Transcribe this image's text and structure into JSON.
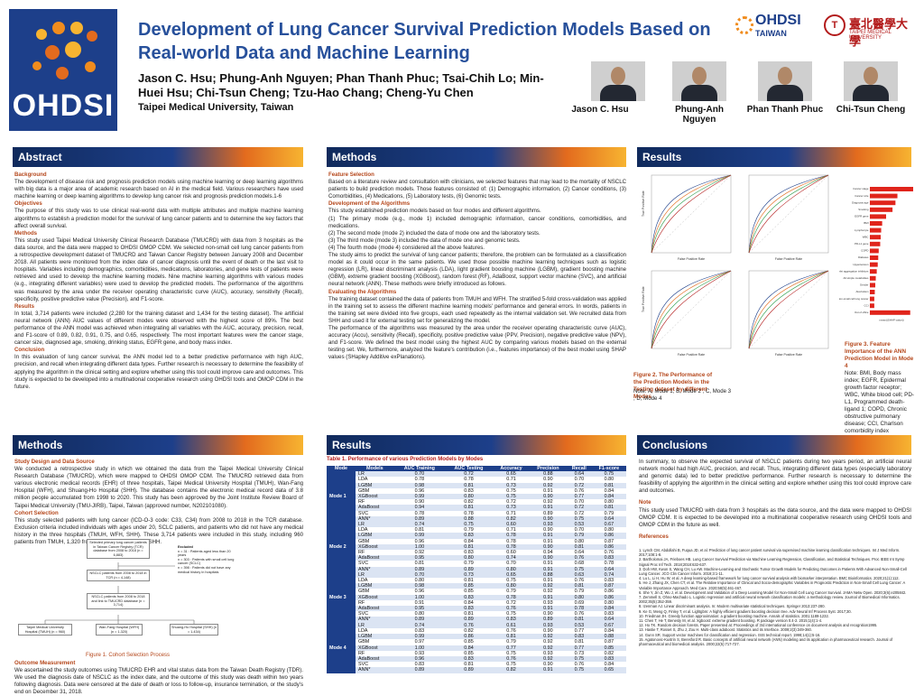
{
  "header": {
    "title": "Development of Lung Cancer Survival Prediction Models Based on Real-world Data and Machine Learning",
    "authors": "Jason C. Hsu; Phung-Anh Nguyen; Phan Thanh Phuc; Tsai-Chih Lo; Min-Huei Hsu; Chi-Tsun Cheng; Tzu-Hao Chang; Cheng-Yu Chen",
    "affiliation": "Taipei Medical University, Taiwan",
    "logo_text": "OHDSI",
    "logo_right_1": "OHDSI",
    "logo_right_2": "TAIWAN",
    "tmu_name": "臺北醫學大學",
    "tmu_sub": "TAIPEI MEDICAL UNIVERSITY",
    "photos": [
      {
        "name": "Jason C. Hsu"
      },
      {
        "name": "Phung-Anh Nguyen"
      },
      {
        "name": "Phan Thanh Phuc"
      },
      {
        "name": "Chi-Tsun Cheng"
      }
    ]
  },
  "sections": {
    "abstract": "Abstract",
    "methods_top": "Methods",
    "results_top": "Results",
    "methods_bottom": "Methods",
    "results_bottom": "Results",
    "conclusions": "Conclusions"
  },
  "abstract": {
    "background_h": "Background",
    "background": "The development of disease risk and prognosis prediction models using machine learning or deep learning algorithms with big data is a major area of academic research based on AI in the medical field. Various researchers have used machine learning or deep learning algorithms to develop lung cancer risk and prognosis prediction models.1-6",
    "objectives_h": "Objectives",
    "objectives": "The purpose of this study was to use clinical real-world data with multiple attributes and multiple machine learning algorithms to establish a prediction model for the survival of lung cancer patients and to determine the key factors that affect overall survival.",
    "methods_h": "Methods",
    "methods": "This study used Taipei Medical University Clinical Research Database (TMUCRD) with data from 3 hospitals as the data source, and the data were mapped to OHDSI OMOP CDM. We selected non-small cell lung cancer patients from a retrospective development dataset of TMUCRD and Taiwan Cancer Registry between January 2008 and December 2018. All patients were monitored from the index date of cancer diagnosis until the event of death or the last visit to hospitals. Variables including demographics, comorbidities, medications, laboratories, and gene tests of patients were retrieved and used to develop the machine learning models. Nine machine learning algorithms with various modes (e.g., integrating different variables) were used to develop the predicted models. The performance of the algorithms was measured by the area under the receiver operating characteristic curve (AUC), accuracy, sensitivity (Recall), specificity, positive predictive value (Precision), and F1-score.",
    "results_h": "Results",
    "results": "In total, 3,714 patients were included (2,280 for the training dataset and 1,434 for the testing dataset). The artificial neural network (ANN) AUC values of different modes were observed with the highest score of 89%. The best performance of the ANN model was achieved when integrating all variables with the AUC, accuracy, precision, recall, and F1-score of 0.89, 0.82, 0.91, 0.75, and 0.65, respectively. The most important features were the cancer stage, cancer size, diagnosed age, smoking, drinking status, EGFR gene, and body mass index.",
    "conclusion_h": "Conclusion",
    "conclusion": "In this evaluation of lung cancer survival, the ANN model led to a better predictive performance with high AUC, precision, and recall when integrating different data types. Further research is necessary to determine the feasibility of applying the algorithm in the clinical setting and explore whether using this tool could improve care and outcomes. This study is expected to be developed into a multinational cooperative research using OHDSI tools and OMOP CDM in the future."
  },
  "methods_top": {
    "feature_h": "Feature Selection",
    "feature": "Based on a literature review and consultation with clinicians, we selected features that may lead to the mortality of NSCLC patients to build prediction models. Those features consisted of: (1) Demographic information, (2) Cancer conditions, (3) Comorbidities, (4) Medications, (5) Laboratory tests, (6) Genomic tests.",
    "dev_h": "Development of the Algorithms",
    "dev1": "This study established prediction models based on four modes and different algorithms.",
    "dev2": "(1) The primary mode (e.g., mode 1) included demographic information, cancer conditions, comorbidities, and medications.",
    "dev3": "(2) The second mode (mode 2) included the data of mode one and the laboratory tests.",
    "dev4": "(3) The third mode (mode 3) included the data of mode one and genomic tests.",
    "dev5": "(4) The fourth mode (mode 4) considered all the above features.",
    "dev6": "The study aims to predict the survival of lung cancer patients; therefore, the problem can be formulated as a classification model as it could occur in the same patients. We used those possible machine learning techniques such as logistic regression (LR), linear discriminant analysis (LDA), light gradient boosting machine (LGBM), gradient boosting machine (GBM), extreme gradient boosting (XGBoost), random forest (RF), AdaBoost, support vector machine (SVC), and artificial neural network (ANN). These methods were briefly introduced as follows.",
    "eval_h": "Evaluating the Algorithms",
    "eval1": "The training dataset contained the data of patients from TMUH and WFH. The stratified 5-fold cross-validation was applied in the training set to assess the different machine learning models' performance and general errors. In words, patients in the training set were divided into five groups, each used repeatedly as the internal validation set. We recruited data from SHH and used it for external testing set for generalizing the model.",
    "eval2": "The performance of the algorithms was measured by the area under the receiver operating characteristic curve (AUC), accuracy (Accu), sensitivity (Recall), specificity, positive predictive value (PPV, Precision), negative predictive value (NPV), and F1-score. We defined the best model using the highest AUC by comparing various models based on the external testing set. We, furthermore, analyzed the feature's contribution (i.e., features importance) of the best model using SHAP values (SHapley Additive exPlanations)."
  },
  "results_top": {
    "fig2_caption": "Figure 2. The Performance of the Prediction Models in the Testing dataset by different Modes",
    "fig2_note": "Note: A, Mode 1; B, Mode 2 ; C, Mode 3 ; D, Mode 4",
    "fig3_caption": "Figure 3. Feature Importance of the ANN Prediction Model in Mode 4",
    "fig3_note": "Note: BMI, Body mass index; EGFR, Epidermal growth factor receptor; WBC, White blood cell; PD-L1, Programmed death-ligand 1; COPD, Chronic obstructive pulmonary disease; CCI, Charlson comorbidity index",
    "roc_xlabel": "False Positive Rate",
    "roc_ylabel": "True Positive Rate",
    "bar_xlabel": "mean(|SHAP value|)",
    "features": [
      "Cancer stage",
      "Cancer size",
      "Diagnosis age",
      "Smoking",
      "EGFR gene",
      "BMI",
      "Lymphocyte",
      "WBC",
      "PD-L1 gene",
      "COPD",
      "Diabetes",
      "Hypertension",
      "Platelet aggregation inhibitors",
      "All simple metabolites",
      "Gender",
      "Alcoholism",
      "Non-small cell lung cancer",
      "CCI",
      "Out of office"
    ],
    "shap_values": [
      0.088,
      0.056,
      0.052,
      0.046,
      0.033,
      0.025,
      0.023,
      0.022,
      0.021,
      0.018,
      0.017,
      0.016,
      0.014,
      0.012,
      0.011,
      0.01,
      0.009,
      0.009,
      0.082
    ]
  },
  "methods_bottom": {
    "design_h": "Study Design and Data Source",
    "design": "We conducted a retrospective study in which we obtained the data from the Taipei Medical University Clinical Research Database (TMUCRD), which were mapped to OHDSI OMOP CDM. The TMUCRD retrieved data from various electronic medical records (EHR) of three hospitals, Taipei Medical University Hospital (TMUH), Wan-Fang Hospital (WFH), and Shuang-Ho Hospital (SHH). The database contains the electronic medical record data of 3.8 million people accumulated from 1998 to 2020. This study has been approved by the Joint Institute Review Board of Taipei Medical University (TMU-JIRB), Taipei, Taiwan (approved number, N202101080).",
    "cohort_h": "Cohort Selection",
    "cohort": "This study selected patients with lung cancer (ICD-O-3 code: C33, C34) from 2008 to 2018 in the TCR database. Exclusion criteria included individuals with ages under 20, SCLC patients, and patients who did not have any medical history in the three hospitals (TMUH, WFH, SHH). These 3,714 patients were included in this study, including 960 patients from TMUH, 1,320 from WFH, and 1,434 from SHH.",
    "fig1_caption": "Figure 1. Cohort Selection Process",
    "outcome_h": "Outcome Measurement",
    "outcome": "We ascertained the study outcomes using TMUCRD EHR and vital status data from the Taiwan Death Registry (TDR). We used the diagnosis date of NSCLC as the index date, and the outcome of this study was death within two years following diagnosis. Data were censored at the date of death or loss to follow-up, insurance termination, or the study's end on December 31, 2018.",
    "boxes": {
      "b1": "Selected primary lung cancer patients in Taiwan Cancer Registry (TCR) database from 2008 to 2018 (n = 6,883)",
      "b2": "NSCLC patients from 2008 to 2018 in TCR (n = 4,148)",
      "b3": "NSCLC patients from 2008 to 2018 and link to TMUCRD database (n = 3,714)",
      "b4": "Taipei Medical University Hospital (TMUH) (n = 960)",
      "b5": "Wan-Fang Hospital (WFH) (n = 1,320)",
      "b6": "Shuang-Ho Hospital (SHH) (n = 1,434)",
      "ex_title": "Excluded",
      "ex1": "n = 31 : Patients aged less than 20 years",
      "ex2": "n = 303 : Patients with small cell lung cancer (SCLC)",
      "ex3": "n = 398 : Patients did not have any medical history in hospitals"
    }
  },
  "table": {
    "title": "Table 1. Performance of various Prediction Models by Modes",
    "headers": [
      "Mode",
      "Models",
      "AUC Training",
      "AUC Testing",
      "Accuracy",
      "Precision",
      "Recall",
      "F1-score"
    ],
    "modes": [
      {
        "name": "Mode 1",
        "rows": [
          [
            "LR",
            "0.70",
            "0.72",
            "0.65",
            "0.88",
            "0.64",
            "0.75"
          ],
          [
            "LDA",
            "0.78",
            "0.78",
            "0.71",
            "0.90",
            "0.70",
            "0.80"
          ],
          [
            "LGBM",
            "0.98",
            "0.81",
            "0.73",
            "0.92",
            "0.72",
            "0.81"
          ],
          [
            "GBM",
            "0.96",
            "0.83",
            "0.75",
            "0.91",
            "0.76",
            "0.84"
          ],
          [
            "XGBoost",
            "0.99",
            "0.80",
            "0.75",
            "0.90",
            "0.77",
            "0.84"
          ],
          [
            "RF",
            "0.90",
            "0.82",
            "0.72",
            "0.92",
            "0.70",
            "0.80"
          ],
          [
            "AdaBoost",
            "0.94",
            "0.81",
            "0.73",
            "0.91",
            "0.72",
            "0.81"
          ],
          [
            "SVC",
            "0.78",
            "0.78",
            "0.71",
            "0.89",
            "0.72",
            "0.79"
          ],
          [
            "ANN*",
            "0.89",
            "0.88",
            "0.82",
            "0.90",
            "0.75",
            "0.64"
          ]
        ]
      },
      {
        "name": "Mode 2",
        "rows": [
          [
            "LR",
            "0.74",
            "0.75",
            "0.60",
            "0.93",
            "0.53",
            "0.67"
          ],
          [
            "LDA",
            "0.81",
            "0.79",
            "0.71",
            "0.90",
            "0.70",
            "0.80"
          ],
          [
            "LGBM",
            "0.99",
            "0.83",
            "0.78",
            "0.91",
            "0.79",
            "0.86"
          ],
          [
            "GBM",
            "0.96",
            "0.84",
            "0.78",
            "0.91",
            "0.80",
            "0.87"
          ],
          [
            "XGBoost",
            "1.00",
            "0.81",
            "0.78",
            "0.90",
            "0.81",
            "0.86"
          ],
          [
            "RF",
            "0.92",
            "0.83",
            "0.60",
            "0.94",
            "0.64",
            "0.76"
          ],
          [
            "AdaBoost",
            "0.95",
            "0.80",
            "0.74",
            "0.90",
            "0.76",
            "0.83"
          ],
          [
            "SVC",
            "0.81",
            "0.79",
            "0.70",
            "0.91",
            "0.68",
            "0.78"
          ],
          [
            "ANN*",
            "0.89",
            "0.89",
            "0.80",
            "0.91",
            "0.75",
            "0.64"
          ]
        ]
      },
      {
        "name": "Mode 3",
        "rows": [
          [
            "LR",
            "0.70",
            "0.73",
            "0.65",
            "0.88",
            "0.63",
            "0.74"
          ],
          [
            "LDA",
            "0.80",
            "0.81",
            "0.75",
            "0.91",
            "0.76",
            "0.83"
          ],
          [
            "LGBM",
            "0.98",
            "0.85",
            "0.80",
            "0.92",
            "0.81",
            "0.87"
          ],
          [
            "GBM",
            "0.96",
            "0.85",
            "0.79",
            "0.92",
            "0.79",
            "0.86"
          ],
          [
            "XGBoost",
            "1.00",
            "0.83",
            "0.78",
            "0.91",
            "0.80",
            "0.86"
          ],
          [
            "RF",
            "0.91",
            "0.84",
            "0.72",
            "0.93",
            "0.69",
            "0.80"
          ],
          [
            "AdaBoost",
            "0.95",
            "0.83",
            "0.76",
            "0.91",
            "0.78",
            "0.84"
          ],
          [
            "SVC",
            "0.80",
            "0.81",
            "0.75",
            "0.90",
            "0.76",
            "0.83"
          ],
          [
            "ANN*",
            "0.89",
            "0.89",
            "0.83",
            "0.89",
            "0.81",
            "0.64"
          ]
        ]
      },
      {
        "name": "Mode 4",
        "rows": [
          [
            "LR",
            "0.74",
            "0.76",
            "0.61",
            "0.93",
            "0.53",
            "0.67"
          ],
          [
            "LDA",
            "0.83",
            "0.82",
            "0.76",
            "0.90",
            "0.77",
            "0.84"
          ],
          [
            "LGBM",
            "0.99",
            "0.86",
            "0.81",
            "0.92",
            "0.83",
            "0.88"
          ],
          [
            "GBM",
            "0.97",
            "0.85",
            "0.79",
            "0.92",
            "0.81",
            "0.87"
          ],
          [
            "XGBoost",
            "1.00",
            "0.84",
            "0.77",
            "0.92",
            "0.77",
            "0.85"
          ],
          [
            "RF",
            "0.93",
            "0.85",
            "0.75",
            "0.93",
            "0.73",
            "0.82"
          ],
          [
            "AdaBoost",
            "0.96",
            "0.83",
            "0.76",
            "0.92",
            "0.75",
            "0.83"
          ],
          [
            "SVC",
            "0.83",
            "0.81",
            "0.75",
            "0.90",
            "0.76",
            "0.84"
          ],
          [
            "ANN*",
            "0.89",
            "0.89",
            "0.82",
            "0.91",
            "0.75",
            "0.65"
          ]
        ]
      }
    ]
  },
  "conclusions": {
    "p1": "In summary, to observe the expected survival of NSCLC patients during two years period, an artificial neural network model had high AUC, precision, and recall. Thus, integrating different data types (especially laboratory and genomic data) led to better predictive performance. Further research is necessary to determine the feasibility of applying the algorithm in the clinical setting and explore whether using this tool could improve care and outcomes.",
    "note_h": "Note",
    "note": "This study used TMUCRD with data from 3 hospitals as the data source, and the data were mapped to OHDSI OMOP CDM. It is expected to be developed into a multinational cooperative research using OHDSI tools and OMOP CDM in the future as well.",
    "refs_h": "References",
    "refs": [
      "1.  Lynch CM, Abdollahi B, Fuqua JD, et al. Prediction of lung cancer patient survival via supervised machine learning classification techniques. Int J Med Inform. 2017;108:1-8.",
      "2.  Bartholomai JA, Frieboes HB. Lung Cancer Survival Prediction via Machine Learning Regression, Classification, and Statistical Techniques. Proc IEEE Int Symp Signal Proc Inf Tech. 2018;2018:632-637.",
      "3.  Doh HW, Kwon S, Wang CH, Lu AW. Machine-Learning and Stochastic Tumor Growth Models for Predicting Outcomes in Patients With Advanced Non-Small-Cell Lung Cancer. JCO Clin Cancer Inform. 2019;3:1-11.",
      "4.  Lu L, Li H, Hu W, et al. A deep learning-based framework for lung cancer survival analysis with biomarker interpretation. BMC Bioinformatics. 2020;21(1):112.",
      "5.  He J, Zhang JX, Chen CT, et al. The Relative Importance of Clinical and Socio-demographic Variables in Prognostic Prediction in Non-Small Cell Lung Cancer: A Variable Importance Approach. Med Care. 2020;58(5):461-467.",
      "6.  She Y, Jin Z, Wu J, et al. Development and Validation of a Deep Learning Model for Non-Small Cell Lung Cancer Survival. JAMA Netw Open. 2020;3(6):e205842.",
      "7.  Zemmell S, Ohno-Machado L. Logistic regression and artificial neural network classification models: a methodology review. Journal of Biomedical Informatics. 2002;35(5):352-359.",
      "8.  Izenman AJ. Linear discriminant analysis. In: Modern multivariate statistical techniques. Springer 2013:237-280.",
      "9.  Ke G, Meng Q, Finley T, et al. Lightgbm: A highly efficient gradient boosting decision tree. Adv Neural Inf Process Syst. 2017;30.",
      "10. Friedman JH. Greedy function approximation: a gradient boosting machine. Annals of statistics. 2001:1189-1232.",
      "11. Chen T, He T, Benesty M, et al. Xgboost: extreme gradient boosting. R package version 0.4-2. 2015;1(4):1-4.",
      "12. Ho TK. Random decision forests. Paper presented at: Proceedings of 3rd international conference on document analysis and recognition1995.",
      "13. Hastie T, Rosset S, Zhu J, Zou H. Multi-class adaboost. Statistics and its Interface. 2009;2(3):349-360.",
      "14. Gunn SR. Support vector machines for classification and regression. ISIS technical report. 1998;14(1):5-16.",
      "15. Agatonovic-Kustrin S, Beresford R. Basic concepts of artificial neural network (ANN) modeling and its application in pharmaceutical research. Journal of pharmaceutical and biomedical analysis. 2000;22(5):717-727."
    ]
  }
}
